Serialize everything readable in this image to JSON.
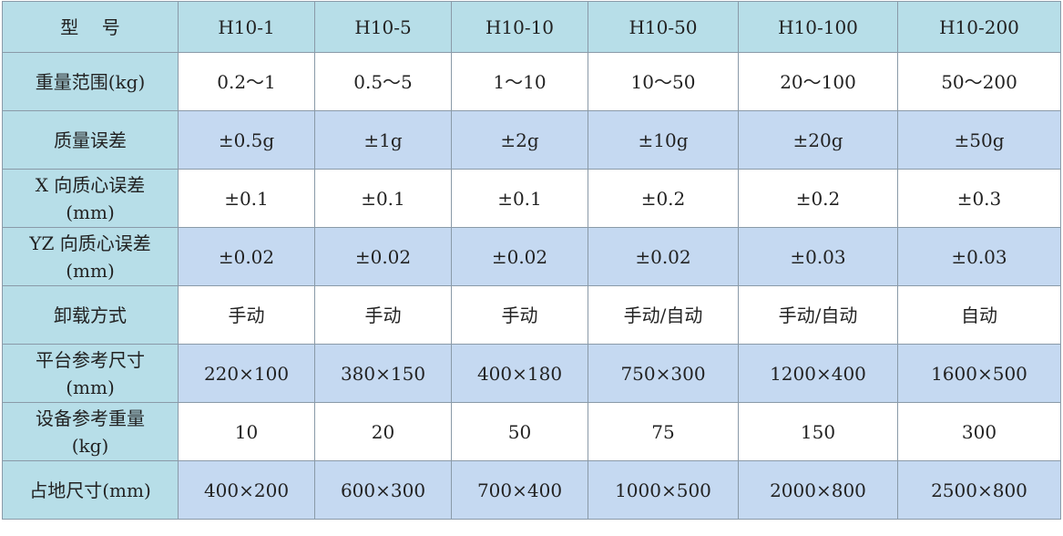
{
  "table": {
    "header": [
      "型    号",
      "H10-1",
      "H10-5",
      "H10-10",
      "H10-50",
      "H10-100",
      "H10-200"
    ],
    "rows": [
      [
        "重量范围(kg)",
        "0.2～1",
        "0.5～5",
        "1～10",
        "10～50",
        "20～100",
        "50～200"
      ],
      [
        "质量误差",
        "±0.5g",
        "±1g",
        "±2g",
        "±10g",
        "±20g",
        "±50g"
      ],
      [
        "X 向质心误差\n(mm)",
        "±0.1",
        "±0.1",
        "±0.1",
        "±0.2",
        "±0.2",
        "±0.3"
      ],
      [
        "YZ 向质心误差\n(mm)",
        "±0.02",
        "±0.02",
        "±0.02",
        "±0.02",
        "±0.03",
        "±0.03"
      ],
      [
        "卸载方式",
        "手动",
        "手动",
        "手动",
        "手动/自动",
        "手动/自动",
        "自动"
      ],
      [
        "平台参考尺寸\n(mm)",
        "220×100",
        "380×150",
        "400×180",
        "750×300",
        "1200×400",
        "1600×500"
      ],
      [
        "设备参考重量\n(kg)",
        "10",
        "20",
        "50",
        "75",
        "150",
        "300"
      ],
      [
        "占地尺寸(mm)",
        "400×200",
        "600×300",
        "700×400",
        "1000×500",
        "2000×800",
        "2500×800"
      ]
    ]
  }
}
